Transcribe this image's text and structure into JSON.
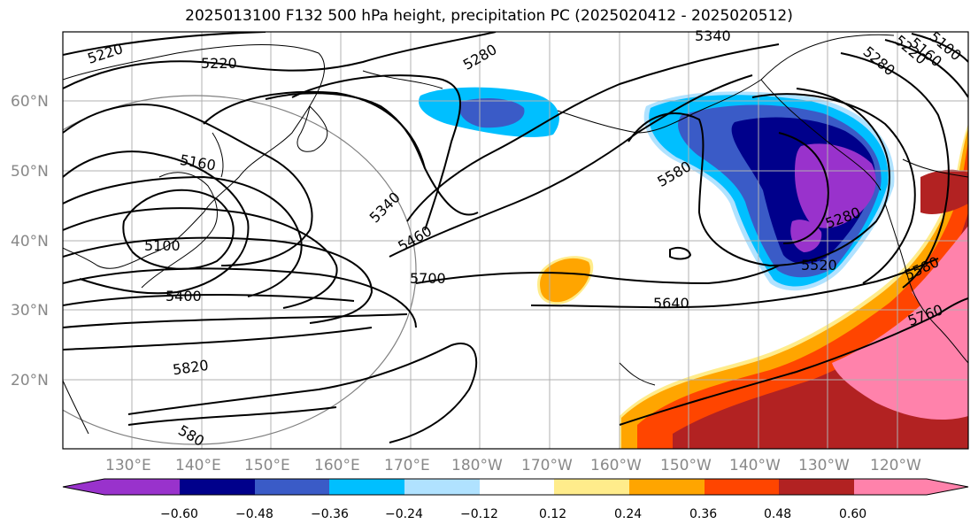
{
  "title": "2025013100 F132 500 hPa height, precipitation PC (2025020412 - 2025020512)",
  "lat_labels": [
    "60°N",
    "50°N",
    "40°N",
    "30°N",
    "20°N"
  ],
  "lon_labels": [
    "130°E",
    "140°E",
    "150°E",
    "160°E",
    "170°E",
    "180°W",
    "170°W",
    "160°W",
    "150°W",
    "140°W",
    "130°W",
    "120°W"
  ],
  "colorbar": {
    "colors": [
      "#9932CC",
      "#00008B",
      "#3A5BC7",
      "#00BFFF",
      "#B0E2FF",
      "#FFFFFF",
      "#FFEC8B",
      "#FFA500",
      "#FF4500",
      "#B22222",
      "#FF82AB"
    ],
    "ticks": [
      "−0.60",
      "−0.48",
      "−0.36",
      "−0.24",
      "−0.12",
      "0.12",
      "0.24",
      "0.36",
      "0.48",
      "0.60"
    ]
  },
  "contour_labels": [
    {
      "text": "5220"
    },
    {
      "text": "5220"
    },
    {
      "text": "5160"
    },
    {
      "text": "5100"
    },
    {
      "text": "5400"
    },
    {
      "text": "5820"
    },
    {
      "text": "5340"
    },
    {
      "text": "5460"
    },
    {
      "text": "5700"
    },
    {
      "text": "5280"
    },
    {
      "text": "5580"
    },
    {
      "text": "5640"
    },
    {
      "text": "5280"
    },
    {
      "text": "5520"
    },
    {
      "text": "5580"
    },
    {
      "text": "5760"
    },
    {
      "text": "5340"
    },
    {
      "text": "5280"
    },
    {
      "text": "5220"
    },
    {
      "text": "5160"
    },
    {
      "text": "5100"
    },
    {
      "text": "580"
    }
  ]
}
